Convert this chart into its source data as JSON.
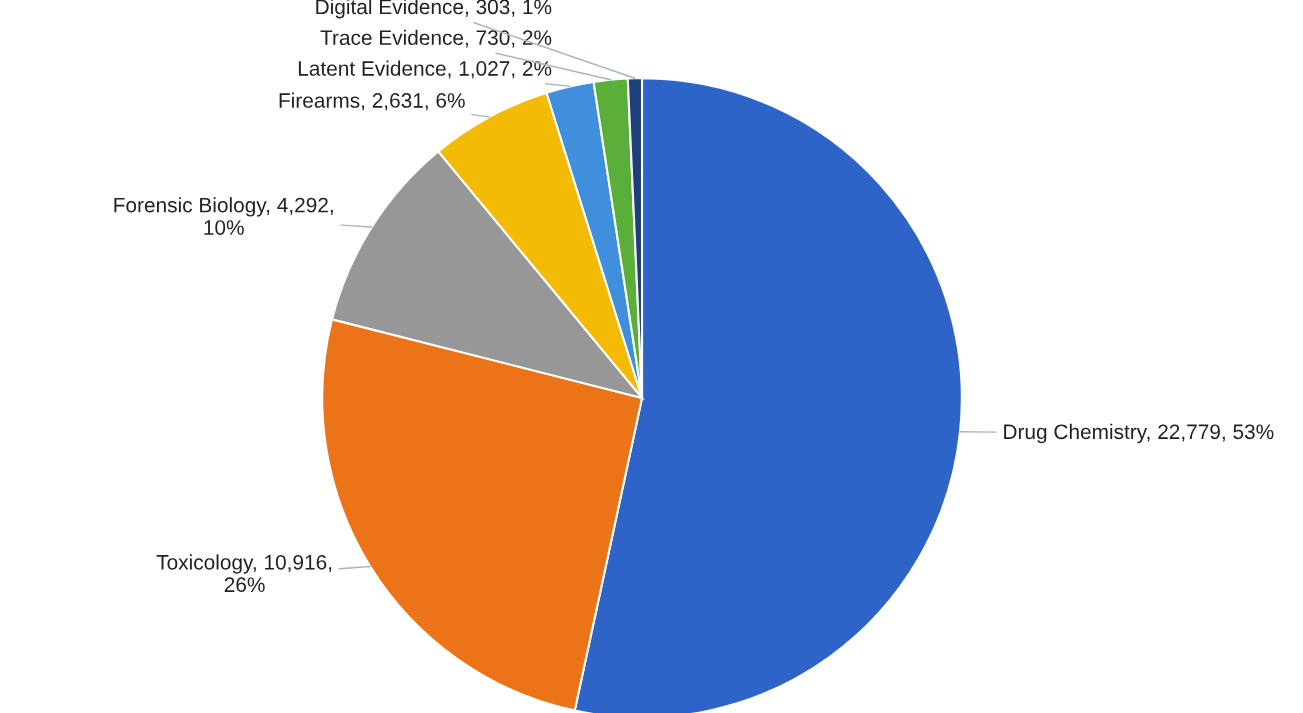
{
  "chart_data": {
    "type": "pie",
    "categories": [
      "Drug Chemistry",
      "Toxicology",
      "Forensic Biology",
      "Firearms",
      "Latent Evidence",
      "Trace Evidence",
      "Digital Evidence"
    ],
    "values": [
      22779,
      10916,
      4292,
      2631,
      1027,
      730,
      303
    ],
    "value_labels": [
      "22,779, 53%",
      "10,916,\n26%",
      "4,292,\n10%",
      "2,631, 6%",
      "1,027, 2%",
      "730, 2%",
      "303, 1%"
    ],
    "colors": [
      "#2e64c8",
      "#ec7418",
      "#979797",
      "#f3bb05",
      "#3f8fdc",
      "#5aae3a",
      "#1f3f7a"
    ],
    "legend": false
  }
}
